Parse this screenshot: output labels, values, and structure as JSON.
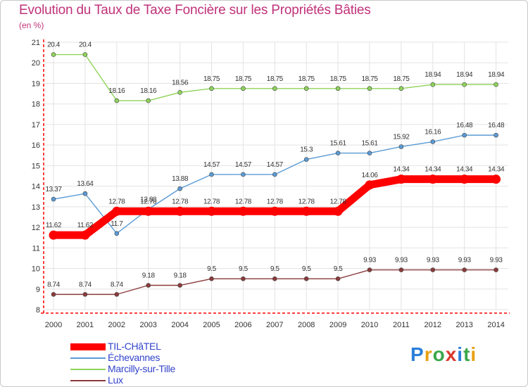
{
  "chart_data": {
    "type": "line",
    "title": "Evolution du Taux de Taxe Foncière sur les Propriétés Bâties",
    "subtitle": "(en %)",
    "xlabel": "",
    "ylabel": "(en %)",
    "ylim": [
      8,
      21
    ],
    "yticks": [
      "8",
      "9",
      "10",
      "11",
      "12",
      "13",
      "14",
      "15",
      "16",
      "17",
      "18",
      "19",
      "20",
      "21"
    ],
    "categories": [
      "2000",
      "2001",
      "2002",
      "2003",
      "2004",
      "2005",
      "2006",
      "2007",
      "2008",
      "2009",
      "2010",
      "2011",
      "2012",
      "2013",
      "2014"
    ],
    "grid": true,
    "legend_position": "bottom-left",
    "series": [
      {
        "name": "TIL-CHâTEL",
        "color": "#ff0000",
        "values": [
          11.62,
          11.62,
          12.78,
          12.78,
          12.78,
          12.78,
          12.78,
          12.78,
          12.78,
          12.78,
          14.06,
          14.34,
          14.34,
          14.34,
          14.34
        ],
        "labels": [
          "11.62",
          "11.62",
          "12.78",
          "12.78",
          "12.78",
          "12.78",
          "12.78",
          "12.78",
          "12.78",
          "12.78",
          "14.06",
          "14.34",
          "14.34",
          "14.34",
          "14.34"
        ]
      },
      {
        "name": "Échevannes",
        "color": "#5b9bd5",
        "values": [
          13.37,
          13.64,
          11.7,
          12.88,
          13.88,
          14.57,
          14.57,
          14.57,
          15.3,
          15.61,
          15.61,
          15.92,
          16.16,
          16.48,
          16.48
        ],
        "labels": [
          "13.37",
          "13.64",
          "11.7",
          "12.88",
          "13.88",
          "14.57",
          "14.57",
          "14.57",
          "15.3",
          "15.61",
          "15.61",
          "15.92",
          "16.16",
          "16.48",
          "16.48"
        ]
      },
      {
        "name": "Marcilly-sur-Tille",
        "color": "#8fd45a",
        "values": [
          20.4,
          20.4,
          18.16,
          18.16,
          18.56,
          18.75,
          18.75,
          18.75,
          18.75,
          18.75,
          18.75,
          18.75,
          18.94,
          18.94,
          18.94
        ],
        "labels": [
          "20.4",
          "20.4",
          "18.16",
          "18.16",
          "18.56",
          "18.75",
          "18.75",
          "18.75",
          "18.75",
          "18.75",
          "18.75",
          "18.75",
          "18.94",
          "18.94",
          "18.94"
        ]
      },
      {
        "name": "Lux",
        "color": "#8b3a3a",
        "values": [
          8.74,
          8.74,
          8.74,
          9.18,
          9.18,
          9.5,
          9.5,
          9.5,
          9.5,
          9.5,
          9.93,
          9.93,
          9.93,
          9.93,
          9.93
        ],
        "labels": [
          "8.74",
          "8.74",
          "8.74",
          "9.18",
          "9.18",
          "9.5",
          "9.5",
          "9.5",
          "9.5",
          "9.5",
          "9.93",
          "9.93",
          "9.93",
          "9.93",
          "9.93"
        ]
      }
    ]
  },
  "brand": {
    "letters": [
      "P",
      "r",
      "o",
      "x",
      "i",
      "t",
      "i"
    ],
    "colors": [
      "#2b7fd9",
      "#e8a015",
      "#3aa84a",
      "#d93a2b",
      "#2b7fd9",
      "#3aa84a",
      "#e8a015"
    ]
  }
}
